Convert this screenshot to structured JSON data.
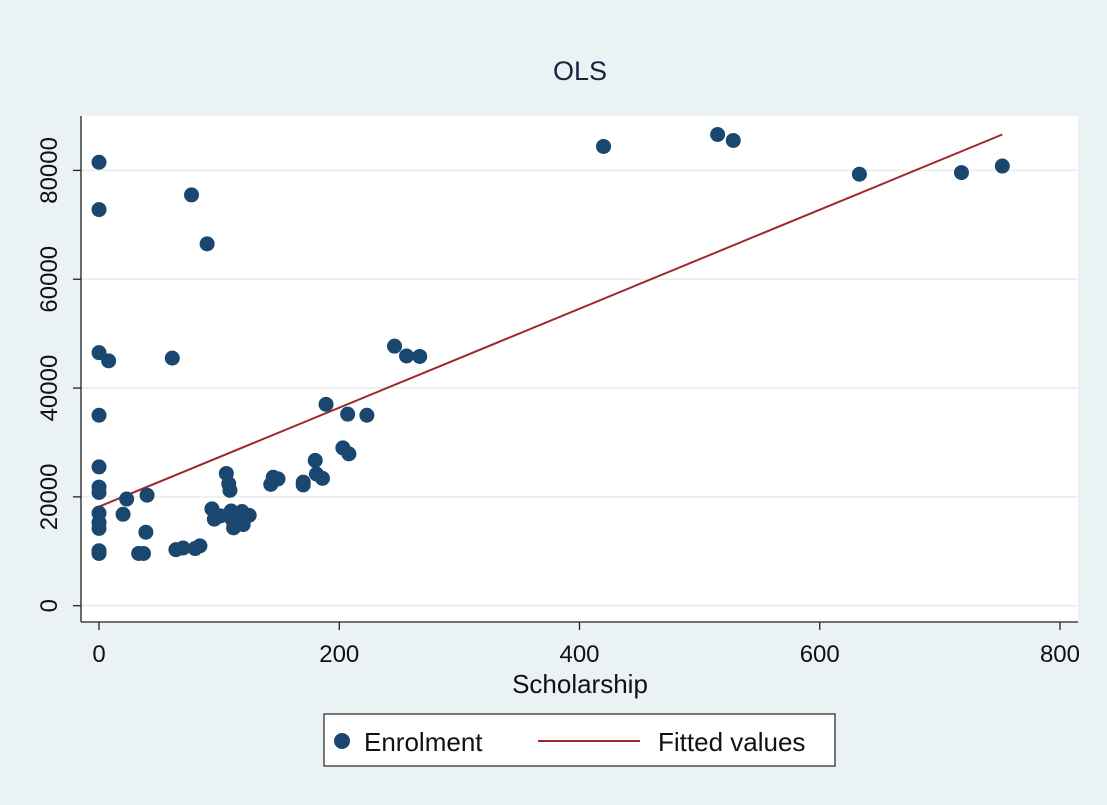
{
  "chart_data": {
    "type": "scatter",
    "title": "OLS",
    "xlabel": "Scholarship",
    "ylabel": "",
    "xlim": [
      -15,
      815
    ],
    "ylim": [
      -3000,
      90000
    ],
    "xticks": [
      0,
      200,
      400,
      600,
      800
    ],
    "yticks": [
      0,
      20000,
      40000,
      60000,
      80000
    ],
    "grid": true,
    "legend_position": "bottom",
    "colors": {
      "points": "#1a476f",
      "fit": "#a0282d",
      "plot_bg": "#ffffff",
      "outer_bg": "#eaf2f3",
      "grid": "#e6eef0"
    },
    "series": [
      {
        "name": "Enrolment",
        "kind": "scatter",
        "points": [
          [
            0,
            81500
          ],
          [
            0,
            72800
          ],
          [
            0,
            46500
          ],
          [
            0,
            35000
          ],
          [
            0,
            25500
          ],
          [
            0,
            21800
          ],
          [
            0,
            20800
          ],
          [
            0,
            17000
          ],
          [
            0,
            15300
          ],
          [
            0,
            14200
          ],
          [
            0,
            10100
          ],
          [
            0,
            9600
          ],
          [
            8,
            45000
          ],
          [
            20,
            16800
          ],
          [
            23,
            19600
          ],
          [
            33,
            9600
          ],
          [
            37,
            9600
          ],
          [
            39,
            13500
          ],
          [
            40,
            20300
          ],
          [
            61,
            45500
          ],
          [
            64,
            10300
          ],
          [
            70,
            10600
          ],
          [
            77,
            75500
          ],
          [
            80,
            10500
          ],
          [
            84,
            11000
          ],
          [
            90,
            66500
          ],
          [
            94,
            17800
          ],
          [
            96,
            15900
          ],
          [
            101,
            16500
          ],
          [
            106,
            24300
          ],
          [
            108,
            22400
          ],
          [
            109,
            21200
          ],
          [
            110,
            17400
          ],
          [
            111,
            15800
          ],
          [
            112,
            14300
          ],
          [
            114,
            16900
          ],
          [
            117,
            16100
          ],
          [
            119,
            17300
          ],
          [
            120,
            14900
          ],
          [
            125,
            16600
          ],
          [
            143,
            22300
          ],
          [
            145,
            23600
          ],
          [
            149,
            23300
          ],
          [
            170,
            22200
          ],
          [
            170,
            22700
          ],
          [
            180,
            26700
          ],
          [
            181,
            24200
          ],
          [
            186,
            23400
          ],
          [
            189,
            37000
          ],
          [
            203,
            29000
          ],
          [
            207,
            35200
          ],
          [
            208,
            27900
          ],
          [
            223,
            35000
          ],
          [
            246,
            47700
          ],
          [
            256,
            45900
          ],
          [
            267,
            45800
          ],
          [
            420,
            84400
          ],
          [
            515,
            86600
          ],
          [
            528,
            85500
          ],
          [
            633,
            79300
          ],
          [
            718,
            79600
          ],
          [
            752,
            80800
          ]
        ]
      },
      {
        "name": "Fitted values",
        "kind": "line",
        "points": [
          [
            0,
            18200
          ],
          [
            752,
            86600
          ]
        ]
      }
    ]
  }
}
